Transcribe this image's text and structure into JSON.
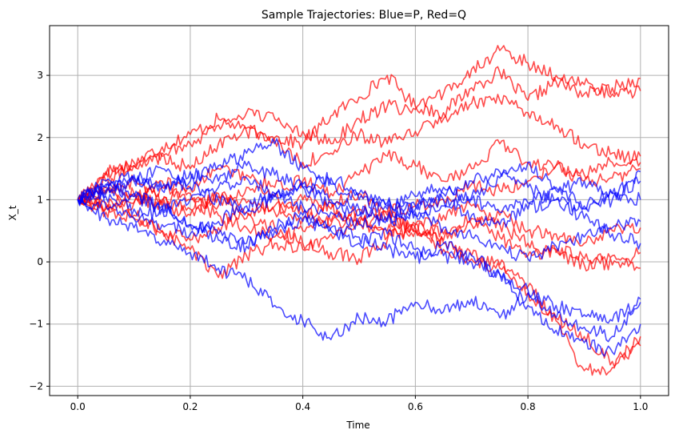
{
  "chart_data": {
    "type": "line",
    "title": "Sample Trajectories: Blue=P, Red=Q",
    "xlabel": "Time",
    "ylabel": "X_t",
    "xlim": [
      -0.05,
      1.05
    ],
    "ylim": [
      -2.15,
      3.8
    ],
    "xticks": [
      0.0,
      0.2,
      0.4,
      0.6,
      0.8,
      1.0
    ],
    "xtick_labels": [
      "0.0",
      "0.2",
      "0.4",
      "0.6",
      "0.8",
      "1.0"
    ],
    "yticks": [
      -2,
      -1,
      0,
      1,
      2,
      3
    ],
    "ytick_labels": [
      "−2",
      "−1",
      "0",
      "1",
      "2",
      "3"
    ],
    "grid": true,
    "colors": {
      "P": "#0000ff",
      "Q": "#ff0000",
      "grid": "#b0b0b0"
    },
    "series": [
      {
        "group": "Q",
        "x": [
          0,
          0.05,
          0.1,
          0.15,
          0.2,
          0.25,
          0.3,
          0.35,
          0.4,
          0.45,
          0.5,
          0.55,
          0.6,
          0.65,
          0.7,
          0.75,
          0.8,
          0.85,
          0.9,
          0.95,
          1.0
        ],
        "y": [
          1,
          1.45,
          1.6,
          1.85,
          2.05,
          2.3,
          2.1,
          2.0,
          1.9,
          2.35,
          2.65,
          3.0,
          2.5,
          2.4,
          2.8,
          3.05,
          2.6,
          2.9,
          2.7,
          2.8,
          2.95
        ]
      },
      {
        "group": "Q",
        "x": [
          0,
          0.05,
          0.1,
          0.15,
          0.2,
          0.25,
          0.3,
          0.35,
          0.4,
          0.45,
          0.5,
          0.55,
          0.6,
          0.65,
          0.7,
          0.75,
          0.8,
          0.85,
          0.9,
          0.95,
          1.0
        ],
        "y": [
          1,
          1.3,
          1.55,
          1.75,
          1.9,
          2.2,
          2.4,
          2.3,
          2.1,
          1.9,
          2.3,
          2.5,
          2.45,
          2.7,
          3.1,
          3.4,
          3.2,
          3.0,
          2.85,
          2.7,
          2.75
        ]
      },
      {
        "group": "Q",
        "x": [
          0,
          0.05,
          0.1,
          0.15,
          0.2,
          0.25,
          0.3,
          0.35,
          0.4,
          0.45,
          0.5,
          0.55,
          0.6,
          0.65,
          0.7,
          0.75,
          0.8,
          0.85,
          0.9,
          0.95,
          1.0
        ],
        "y": [
          1,
          1.4,
          1.55,
          1.7,
          1.5,
          1.9,
          2.15,
          1.95,
          1.6,
          1.75,
          2.05,
          1.9,
          2.1,
          2.3,
          2.55,
          2.6,
          2.4,
          2.2,
          1.9,
          1.75,
          1.6
        ]
      },
      {
        "group": "Q",
        "x": [
          0,
          0.05,
          0.1,
          0.15,
          0.2,
          0.25,
          0.3,
          0.35,
          0.4,
          0.45,
          0.5,
          0.55,
          0.6,
          0.65,
          0.7,
          0.75,
          0.8,
          0.85,
          0.9,
          0.95,
          1.0
        ],
        "y": [
          1,
          1.2,
          1.1,
          0.95,
          1.2,
          1.5,
          1.4,
          1.2,
          1.3,
          1.1,
          1.4,
          1.7,
          1.55,
          1.3,
          1.5,
          1.9,
          1.6,
          1.55,
          1.3,
          1.35,
          1.5
        ]
      },
      {
        "group": "Q",
        "x": [
          0,
          0.05,
          0.1,
          0.15,
          0.2,
          0.25,
          0.3,
          0.35,
          0.4,
          0.45,
          0.5,
          0.55,
          0.6,
          0.65,
          0.7,
          0.75,
          0.8,
          0.85,
          0.9,
          0.95,
          1.0
        ],
        "y": [
          1,
          0.85,
          0.7,
          0.5,
          0.35,
          0.55,
          0.8,
          0.9,
          0.7,
          0.95,
          1.1,
          0.8,
          0.9,
          1.0,
          1.25,
          1.15,
          1.3,
          1.55,
          1.4,
          1.6,
          1.7
        ]
      },
      {
        "group": "Q",
        "x": [
          0,
          0.05,
          0.1,
          0.15,
          0.2,
          0.25,
          0.3,
          0.35,
          0.4,
          0.45,
          0.5,
          0.55,
          0.6,
          0.65,
          0.7,
          0.75,
          0.8,
          0.85,
          0.9,
          0.95,
          1.0
        ],
        "y": [
          1,
          0.9,
          0.75,
          0.5,
          0.2,
          -0.25,
          0.1,
          0.3,
          0.2,
          0.45,
          0.65,
          0.4,
          0.5,
          0.35,
          0.6,
          0.75,
          0.5,
          0.45,
          0.3,
          0.5,
          0.55
        ]
      },
      {
        "group": "Q",
        "x": [
          0,
          0.05,
          0.1,
          0.15,
          0.2,
          0.25,
          0.3,
          0.35,
          0.4,
          0.45,
          0.5,
          0.55,
          0.6,
          0.65,
          0.7,
          0.75,
          0.8,
          0.85,
          0.9,
          0.95,
          1.0
        ],
        "y": [
          1,
          1.1,
          1.3,
          1.0,
          0.85,
          1.05,
          0.7,
          0.55,
          0.3,
          0.15,
          0.05,
          0.35,
          0.6,
          0.45,
          0.7,
          0.4,
          0.1,
          0.2,
          0.05,
          -0.05,
          0.15
        ]
      },
      {
        "group": "Q",
        "x": [
          0,
          0.05,
          0.1,
          0.15,
          0.2,
          0.25,
          0.3,
          0.35,
          0.4,
          0.45,
          0.5,
          0.55,
          0.6,
          0.65,
          0.7,
          0.75,
          0.8,
          0.85,
          0.9,
          0.95,
          1.0
        ],
        "y": [
          1,
          0.95,
          1.05,
          0.9,
          0.75,
          1.1,
          0.95,
          0.8,
          1.0,
          0.85,
          0.6,
          0.75,
          0.5,
          0.3,
          0.1,
          -0.05,
          -0.4,
          -0.9,
          -1.2,
          -1.6,
          -1.35
        ]
      },
      {
        "group": "Q",
        "x": [
          0,
          0.05,
          0.1,
          0.15,
          0.2,
          0.25,
          0.3,
          0.35,
          0.4,
          0.45,
          0.5,
          0.55,
          0.6,
          0.65,
          0.7,
          0.75,
          0.8,
          0.85,
          0.9,
          0.95,
          1.0
        ],
        "y": [
          1,
          1.15,
          0.95,
          1.3,
          1.1,
          0.9,
          1.2,
          1.05,
          0.8,
          0.6,
          0.7,
          0.5,
          0.6,
          0.2,
          0.05,
          -0.1,
          -0.5,
          -0.95,
          -1.75,
          -1.7,
          -1.2
        ]
      },
      {
        "group": "Q",
        "x": [
          0,
          0.05,
          0.1,
          0.15,
          0.2,
          0.25,
          0.3,
          0.35,
          0.4,
          0.45,
          0.5,
          0.55,
          0.6,
          0.65,
          0.7,
          0.75,
          0.8,
          0.85,
          0.9,
          0.95,
          1.0
        ],
        "y": [
          1,
          0.8,
          0.95,
          1.2,
          1.0,
          0.75,
          0.55,
          0.4,
          0.5,
          0.65,
          0.85,
          0.7,
          0.55,
          0.75,
          0.9,
          0.6,
          0.3,
          0.15,
          -0.05,
          0.1,
          -0.1
        ]
      },
      {
        "group": "P",
        "x": [
          0,
          0.05,
          0.1,
          0.15,
          0.2,
          0.25,
          0.3,
          0.35,
          0.4,
          0.45,
          0.5,
          0.55,
          0.6,
          0.65,
          0.7,
          0.75,
          0.8,
          0.85,
          0.9,
          0.95,
          1.0
        ],
        "y": [
          1,
          0.7,
          0.55,
          0.3,
          0.15,
          -0.1,
          -0.3,
          -0.7,
          -0.95,
          -1.25,
          -0.9,
          -0.95,
          -0.65,
          -0.8,
          -0.6,
          -0.9,
          -0.5,
          -0.7,
          -0.85,
          -0.95,
          -0.6
        ]
      },
      {
        "group": "P",
        "x": [
          0,
          0.05,
          0.1,
          0.15,
          0.2,
          0.25,
          0.3,
          0.35,
          0.4,
          0.45,
          0.5,
          0.55,
          0.6,
          0.65,
          0.7,
          0.75,
          0.8,
          0.85,
          0.9,
          0.95,
          1.0
        ],
        "y": [
          1,
          1.2,
          1.05,
          0.85,
          0.6,
          0.45,
          0.3,
          0.5,
          0.65,
          0.55,
          0.4,
          0.2,
          0.05,
          0.3,
          0.1,
          -0.2,
          -0.7,
          -1.1,
          -1.3,
          -1.45,
          -1.0
        ]
      },
      {
        "group": "P",
        "x": [
          0,
          0.05,
          0.1,
          0.15,
          0.2,
          0.25,
          0.3,
          0.35,
          0.4,
          0.45,
          0.5,
          0.55,
          0.6,
          0.65,
          0.7,
          0.75,
          0.8,
          0.85,
          0.9,
          0.95,
          1.0
        ],
        "y": [
          1,
          1.25,
          1.4,
          1.15,
          1.3,
          1.55,
          1.75,
          1.9,
          1.5,
          1.25,
          1.0,
          0.85,
          0.75,
          0.9,
          1.05,
          1.35,
          1.6,
          1.2,
          0.9,
          1.1,
          1.3
        ]
      },
      {
        "group": "P",
        "x": [
          0,
          0.05,
          0.1,
          0.15,
          0.2,
          0.25,
          0.3,
          0.35,
          0.4,
          0.45,
          0.5,
          0.55,
          0.6,
          0.65,
          0.7,
          0.75,
          0.8,
          0.85,
          0.9,
          0.95,
          1.0
        ],
        "y": [
          1,
          1.1,
          1.3,
          1.5,
          1.2,
          1.0,
          0.8,
          1.05,
          1.2,
          0.95,
          0.75,
          0.95,
          0.85,
          1.1,
          1.3,
          1.45,
          1.2,
          1.0,
          0.85,
          1.0,
          1.45
        ]
      },
      {
        "group": "P",
        "x": [
          0,
          0.05,
          0.1,
          0.15,
          0.2,
          0.25,
          0.3,
          0.35,
          0.4,
          0.45,
          0.5,
          0.55,
          0.6,
          0.65,
          0.7,
          0.75,
          0.8,
          0.85,
          0.9,
          0.95,
          1.0
        ],
        "y": [
          1,
          0.9,
          0.7,
          0.85,
          1.0,
          1.2,
          1.35,
          1.1,
          0.9,
          0.8,
          0.6,
          0.7,
          0.9,
          1.0,
          0.75,
          0.6,
          0.85,
          1.0,
          0.7,
          0.45,
          0.3
        ]
      },
      {
        "group": "P",
        "x": [
          0,
          0.05,
          0.1,
          0.15,
          0.2,
          0.25,
          0.3,
          0.35,
          0.4,
          0.45,
          0.5,
          0.55,
          0.6,
          0.65,
          0.7,
          0.75,
          0.8,
          0.85,
          0.9,
          0.95,
          1.0
        ],
        "y": [
          1,
          1.3,
          1.1,
          0.9,
          0.6,
          0.35,
          0.25,
          0.55,
          0.75,
          0.5,
          0.3,
          0.45,
          0.2,
          0.1,
          0.0,
          -0.2,
          -0.45,
          -0.9,
          -1.05,
          -1.2,
          -0.65
        ]
      },
      {
        "group": "P",
        "x": [
          0,
          0.05,
          0.1,
          0.15,
          0.2,
          0.25,
          0.3,
          0.35,
          0.4,
          0.45,
          0.5,
          0.55,
          0.6,
          0.65,
          0.7,
          0.75,
          0.8,
          0.85,
          0.9,
          0.95,
          1.0
        ],
        "y": [
          1,
          1.05,
          0.85,
          0.6,
          0.45,
          0.65,
          0.9,
          1.1,
          1.25,
          1.0,
          0.85,
          0.65,
          0.8,
          0.55,
          0.4,
          0.2,
          0.05,
          0.25,
          0.4,
          0.55,
          0.65
        ]
      },
      {
        "group": "P",
        "x": [
          0,
          0.05,
          0.1,
          0.15,
          0.2,
          0.25,
          0.3,
          0.35,
          0.4,
          0.45,
          0.5,
          0.55,
          0.6,
          0.65,
          0.7,
          0.75,
          0.8,
          0.85,
          0.9,
          0.95,
          1.0
        ],
        "y": [
          1,
          1.15,
          1.35,
          1.2,
          1.45,
          1.3,
          1.55,
          1.4,
          1.2,
          1.35,
          1.1,
          0.9,
          1.05,
          1.2,
          1.0,
          0.8,
          0.95,
          1.15,
          1.3,
          1.1,
          1.0
        ]
      }
    ]
  }
}
